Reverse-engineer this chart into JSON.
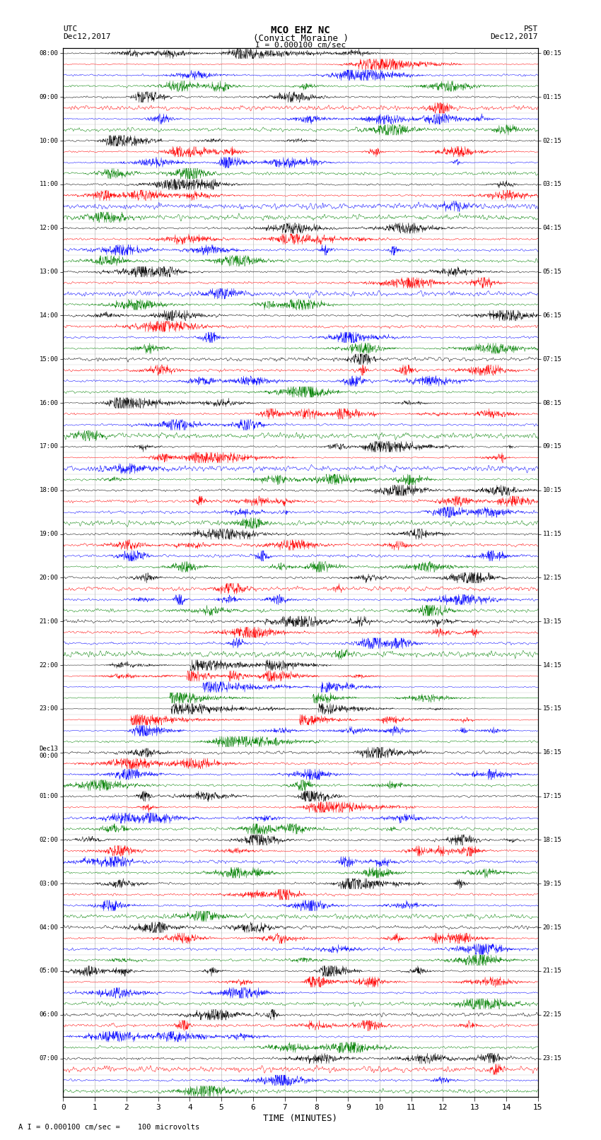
{
  "title_line1": "MCO EHZ NC",
  "title_line2": "(Convict Moraine )",
  "scale_label": "I = 0.000100 cm/sec",
  "footer_label": "A I = 0.000100 cm/sec =    100 microvolts",
  "utc_label": "UTC",
  "pst_label": "PST",
  "date_left": "Dec12,2017",
  "date_right": "Dec12,2017",
  "xlabel": "TIME (MINUTES)",
  "bg_color": "#ffffff",
  "trace_color_cycle": [
    "#000000",
    "#ff0000",
    "#0000ff",
    "#008000"
  ],
  "row_labels_left": [
    "08:00",
    "",
    "",
    "",
    "09:00",
    "",
    "",
    "",
    "10:00",
    "",
    "",
    "",
    "11:00",
    "",
    "",
    "",
    "12:00",
    "",
    "",
    "",
    "13:00",
    "",
    "",
    "",
    "14:00",
    "",
    "",
    "",
    "15:00",
    "",
    "",
    "",
    "16:00",
    "",
    "",
    "",
    "17:00",
    "",
    "",
    "",
    "18:00",
    "",
    "",
    "",
    "19:00",
    "",
    "",
    "",
    "20:00",
    "",
    "",
    "",
    "21:00",
    "",
    "",
    "",
    "22:00",
    "",
    "",
    "",
    "23:00",
    "",
    "",
    "",
    "Dec13\n00:00",
    "",
    "",
    "",
    "01:00",
    "",
    "",
    "",
    "02:00",
    "",
    "",
    "",
    "03:00",
    "",
    "",
    "",
    "04:00",
    "",
    "",
    "",
    "05:00",
    "",
    "",
    "",
    "06:00",
    "",
    "",
    "",
    "07:00",
    "",
    "",
    ""
  ],
  "row_labels_right": [
    "00:15",
    "",
    "",
    "",
    "01:15",
    "",
    "",
    "",
    "02:15",
    "",
    "",
    "",
    "03:15",
    "",
    "",
    "",
    "04:15",
    "",
    "",
    "",
    "05:15",
    "",
    "",
    "",
    "06:15",
    "",
    "",
    "",
    "07:15",
    "",
    "",
    "",
    "08:15",
    "",
    "",
    "",
    "09:15",
    "",
    "",
    "",
    "10:15",
    "",
    "",
    "",
    "11:15",
    "",
    "",
    "",
    "12:15",
    "",
    "",
    "",
    "13:15",
    "",
    "",
    "",
    "14:15",
    "",
    "",
    "",
    "15:15",
    "",
    "",
    "",
    "16:15",
    "",
    "",
    "",
    "17:15",
    "",
    "",
    "",
    "18:15",
    "",
    "",
    "",
    "19:15",
    "",
    "",
    "",
    "20:15",
    "",
    "",
    "",
    "21:15",
    "",
    "",
    "",
    "22:15",
    "",
    "",
    "",
    "23:15",
    "",
    "",
    ""
  ],
  "n_rows": 96,
  "minutes": 15,
  "xmin": 0,
  "xmax": 15,
  "xticks": [
    0,
    1,
    2,
    3,
    4,
    5,
    6,
    7,
    8,
    9,
    10,
    11,
    12,
    13,
    14,
    15
  ],
  "noise_seed": 42,
  "n_pts": 1800
}
